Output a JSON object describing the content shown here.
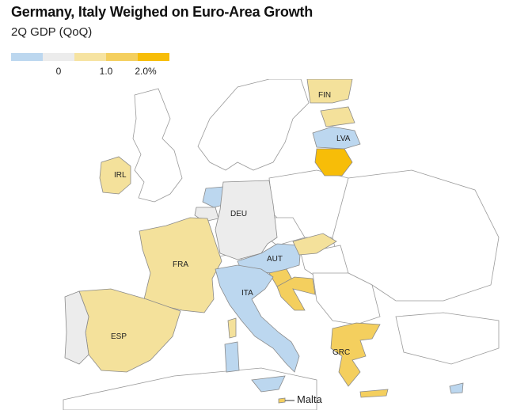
{
  "header": {
    "title": "Germany, Italy Weighed on Euro-Area Growth",
    "subtitle": "2Q GDP (QoQ)"
  },
  "legend": {
    "colors": [
      "#bcd7ef",
      "#ececec",
      "#f6e3a1",
      "#f4cf5e",
      "#f7bd08"
    ],
    "ticks": [
      "0",
      "1.0",
      "2.0%"
    ]
  },
  "map_data": {
    "regions": [
      {
        "code": "IRL",
        "label": "IRL",
        "bin": "light-yellow",
        "color": "#f4e19b"
      },
      {
        "code": "FRA",
        "label": "FRA",
        "bin": "light-yellow",
        "color": "#f4e19b"
      },
      {
        "code": "ESP",
        "label": "ESP",
        "bin": "light-yellow",
        "color": "#f4e19b"
      },
      {
        "code": "PRT",
        "label": "",
        "bin": "near-zero",
        "color": "#ececec"
      },
      {
        "code": "DEU",
        "label": "DEU",
        "bin": "near-zero",
        "color": "#ececec"
      },
      {
        "code": "ITA",
        "label": "ITA",
        "bin": "negative",
        "color": "#bcd7ef"
      },
      {
        "code": "AUT",
        "label": "AUT",
        "bin": "negative",
        "color": "#bcd7ef"
      },
      {
        "code": "NLD",
        "label": "",
        "bin": "negative",
        "color": "#bcd7ef"
      },
      {
        "code": "BEL",
        "label": "",
        "bin": "near-zero",
        "color": "#ececec"
      },
      {
        "code": "LVA",
        "label": "LVA",
        "bin": "negative",
        "color": "#bcd7ef"
      },
      {
        "code": "LTU",
        "label": "",
        "bin": "top",
        "color": "#f7bd08"
      },
      {
        "code": "EST",
        "label": "",
        "bin": "light-yellow",
        "color": "#f4e19b"
      },
      {
        "code": "FIN",
        "label": "FIN",
        "bin": "light-yellow",
        "color": "#f4e19b"
      },
      {
        "code": "SVK",
        "label": "",
        "bin": "light-yellow",
        "color": "#f4e19b"
      },
      {
        "code": "SVN",
        "label": "",
        "bin": "mid-yellow",
        "color": "#f4cf5e"
      },
      {
        "code": "HRV",
        "label": "",
        "bin": "mid-yellow",
        "color": "#f4cf5e"
      },
      {
        "code": "GRC",
        "label": "GRC",
        "bin": "mid-yellow",
        "color": "#f4cf5e"
      },
      {
        "code": "CYP",
        "label": "",
        "bin": "negative",
        "color": "#bcd7ef"
      },
      {
        "code": "MLT",
        "label": "",
        "bin": "mid-yellow",
        "color": "#f4cf5e"
      }
    ],
    "annotation": "Malta"
  }
}
